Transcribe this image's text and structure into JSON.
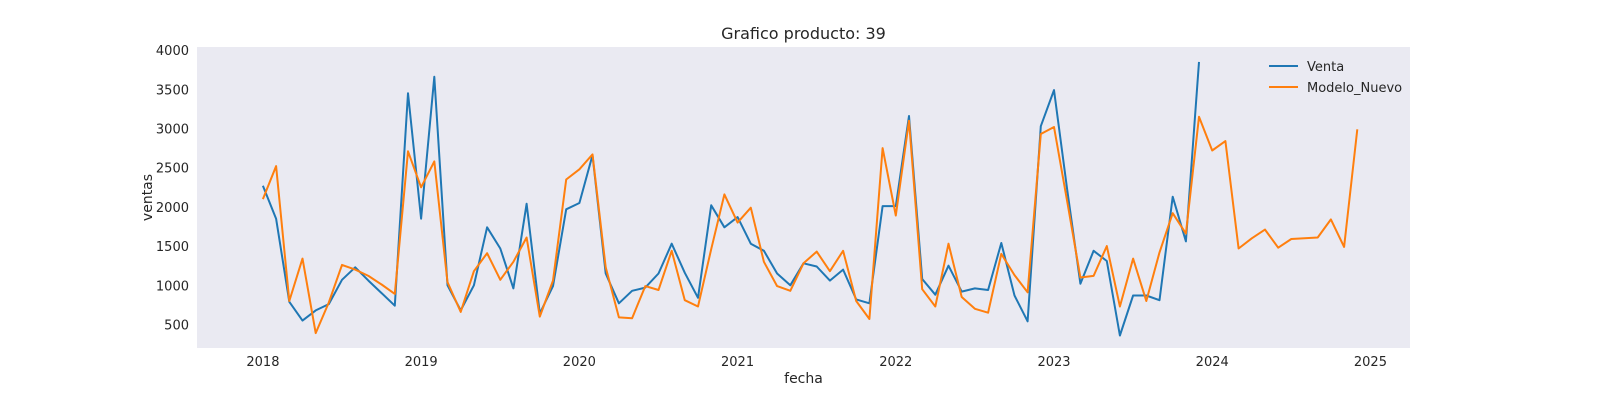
{
  "chart_data": {
    "type": "line",
    "title": "Grafico producto: 39",
    "xlabel": "fecha",
    "ylabel": "ventas",
    "x_start": "2018-01",
    "x_ticks": [
      "2018",
      "2019",
      "2020",
      "2021",
      "2022",
      "2023",
      "2024",
      "2025"
    ],
    "xlim": [
      "2017-08",
      "2025-04"
    ],
    "y_ticks": [
      500,
      1000,
      1500,
      2000,
      2500,
      3000,
      3500,
      4000
    ],
    "ylim": [
      200,
      4040
    ],
    "grid": false,
    "legend_position": "top-right",
    "background": "#eaeaf2",
    "series": [
      {
        "name": "Venta",
        "color": "#1f77b4",
        "values": [
          2270,
          1850,
          790,
          550,
          680,
          760,
          1070,
          1230,
          1060,
          900,
          740,
          3450,
          1850,
          3660,
          1000,
          680,
          1000,
          1740,
          1470,
          960,
          2040,
          640,
          990,
          1970,
          2050,
          2660,
          1150,
          770,
          930,
          970,
          1150,
          1530,
          1160,
          840,
          2020,
          1740,
          1870,
          1530,
          1440,
          1150,
          1000,
          1280,
          1240,
          1060,
          1200,
          820,
          770,
          2010,
          2010,
          3160,
          1080,
          880,
          1250,
          920,
          960,
          940,
          1540,
          870,
          540,
          3030,
          3490,
          2220,
          1020,
          1440,
          1310,
          360,
          870,
          870,
          810,
          2130,
          1560,
          3850
        ]
      },
      {
        "name": "Modelo_Nuevo",
        "color": "#ff7f0e",
        "values": [
          2100,
          2520,
          800,
          1340,
          390,
          780,
          1260,
          1200,
          1120,
          1010,
          890,
          2710,
          2250,
          2580,
          1040,
          660,
          1180,
          1410,
          1070,
          1300,
          1610,
          600,
          1060,
          2350,
          2480,
          2670,
          1230,
          590,
          580,
          990,
          940,
          1440,
          810,
          730,
          1460,
          2160,
          1800,
          1990,
          1300,
          990,
          930,
          1280,
          1430,
          1180,
          1440,
          800,
          570,
          2750,
          1890,
          3100,
          950,
          730,
          1530,
          850,
          700,
          650,
          1400,
          1130,
          910,
          2930,
          3020,
          2070,
          1100,
          1120,
          1500,
          730,
          1340,
          800,
          1420,
          1920,
          1660,
          3150,
          2720,
          2840,
          1470,
          1600,
          1710,
          1480,
          1590,
          1600,
          1610,
          1840,
          1490,
          2990
        ]
      }
    ]
  }
}
